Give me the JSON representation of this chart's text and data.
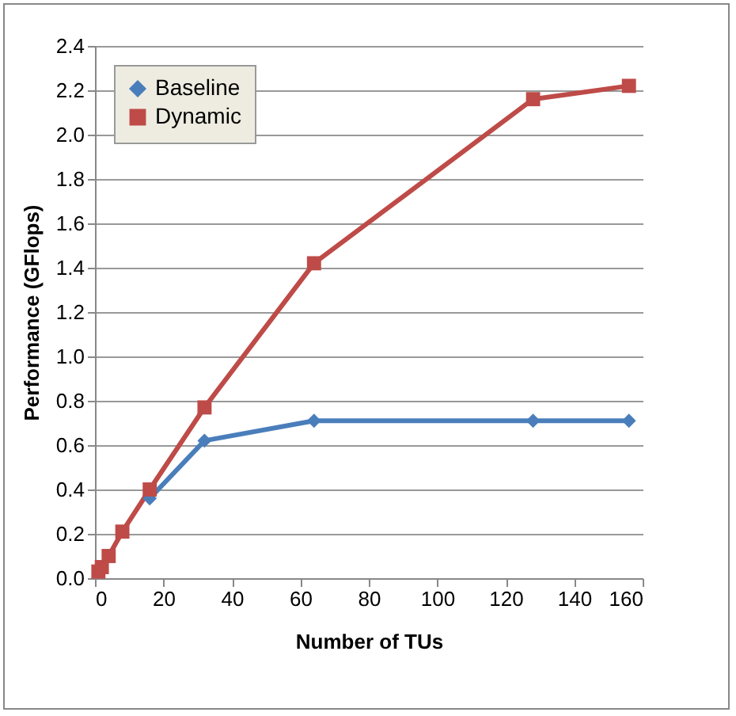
{
  "chart_data": {
    "type": "line",
    "xlabel": "Number of TUs",
    "ylabel": "Performance (GFlops)",
    "x": [
      1,
      2,
      4,
      8,
      16,
      32,
      64,
      128,
      156
    ],
    "series": [
      {
        "name": "Baseline",
        "color": "#4a7ebb",
        "marker": "diamond",
        "values": [
          null,
          null,
          null,
          null,
          0.36,
          0.62,
          0.71,
          0.71,
          0.71
        ]
      },
      {
        "name": "Dynamic",
        "color": "#be4b48",
        "marker": "square",
        "values": [
          0.03,
          0.05,
          0.1,
          0.21,
          0.4,
          0.77,
          1.42,
          2.16,
          2.22
        ]
      }
    ],
    "xlim": [
      0,
      160
    ],
    "xticks": [
      0,
      20,
      40,
      60,
      80,
      100,
      120,
      140,
      160
    ],
    "ylim": [
      0,
      2.4
    ],
    "yticks": [
      {
        "value": 0,
        "label": "0.0"
      },
      0.2,
      0.4,
      0.6,
      0.8,
      {
        "value": 1,
        "label": "1.0"
      },
      1.2,
      1.4,
      1.6,
      1.8,
      {
        "value": 2,
        "label": "2.0"
      },
      2.2,
      2.4
    ],
    "grid": "y",
    "legend": "top left"
  }
}
